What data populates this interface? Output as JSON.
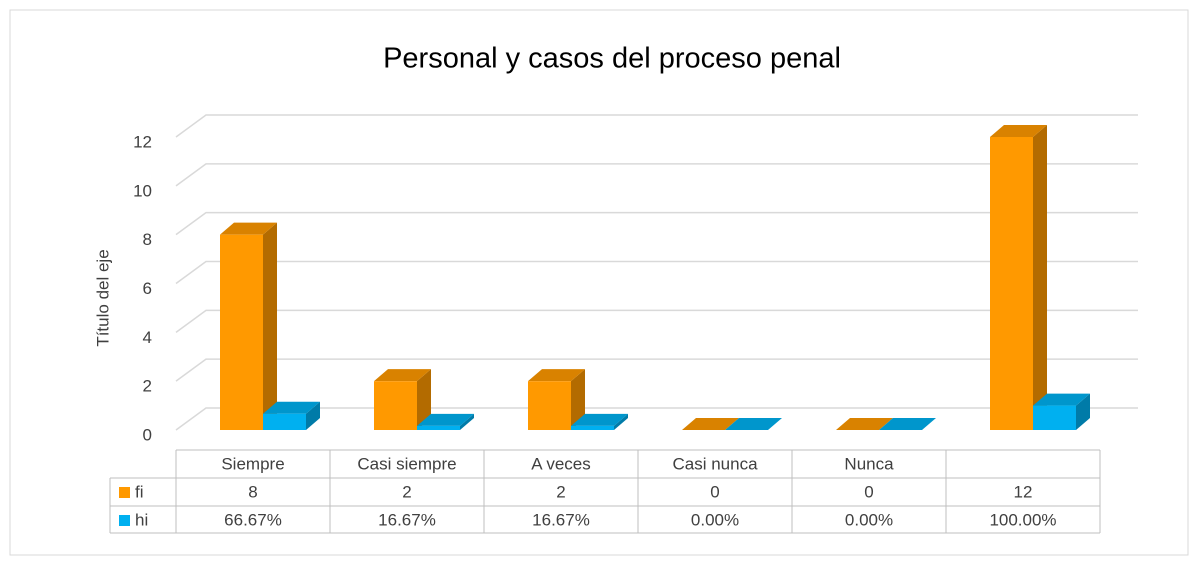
{
  "chart_data": {
    "type": "bar3d",
    "title": "Personal y casos del proceso penal",
    "y_axis_label": "Título del eje",
    "categories": [
      "Siempre",
      "Casi siempre",
      "A veces",
      "Casi nunca",
      "Nunca",
      null
    ],
    "series": [
      {
        "name": "fi",
        "color": "#ff9900",
        "values": [
          8,
          2,
          2,
          0,
          0,
          12
        ]
      },
      {
        "name": "hi",
        "color": "#00b0f0",
        "values": [
          0.6667,
          0.1667,
          0.1667,
          0,
          0,
          1
        ],
        "value_labels": [
          "66.67%",
          "16.67%",
          "16.67%",
          "0.00%",
          "0.00%",
          "100.00%"
        ]
      }
    ],
    "ylim": [
      0,
      12
    ],
    "yticks": [
      0,
      2,
      4,
      6,
      8,
      10,
      12
    ],
    "grid": true,
    "data_table": true
  }
}
